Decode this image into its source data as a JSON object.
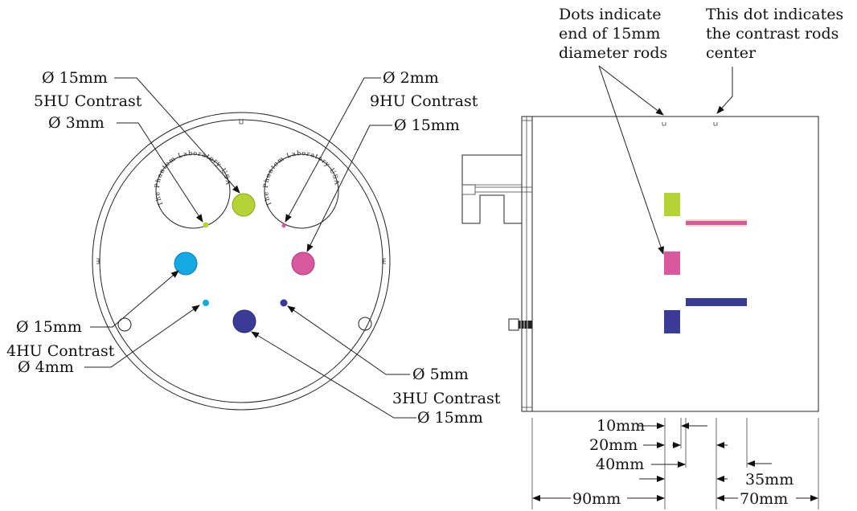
{
  "colors": {
    "lime": "#b5d334",
    "magenta": "#d9589e",
    "cyan": "#14a9e2",
    "navy": "#3a3b96",
    "stroke": "#222222"
  },
  "front_view": {
    "labels": {
      "d15_5hu": "Ø 15mm",
      "contrast_5hu": "5HU Contrast",
      "d3_5hu": "Ø 3mm",
      "d2_9hu": "Ø 2mm",
      "contrast_9hu": "9HU Contrast",
      "d15_9hu": "Ø 15mm",
      "d15_4hu": "Ø 15mm",
      "contrast_4hu": "4HU Contrast",
      "d4_4hu": "Ø 4mm",
      "d5_3hu": "Ø 5mm",
      "contrast_3hu": "3HU Contrast",
      "d15_3hu": "Ø 15mm"
    },
    "logo_text": "The Phantom Laboratory  USA"
  },
  "side_view": {
    "notes": {
      "dots_line1": "Dots indicate",
      "dots_line2": "end of 15mm",
      "dots_line3": "diameter rods",
      "center_line1": "This dot indicates",
      "center_line2": "the  contrast rods",
      "center_line3": "center"
    },
    "dimensions": {
      "d10": "10mm",
      "d20": "20mm",
      "d40": "40mm",
      "d35": "35mm",
      "d90": "90mm",
      "d70": "70mm"
    }
  }
}
